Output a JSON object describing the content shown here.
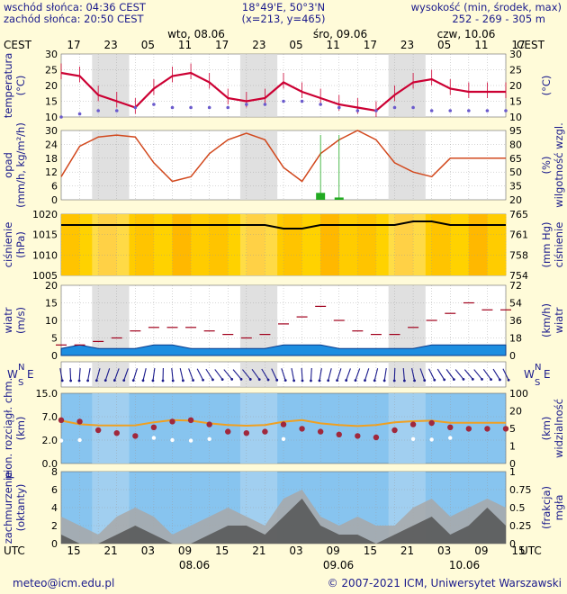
{
  "header": {
    "sunrise": "wschód słońca: 04:36 CEST",
    "sunset": "zachód słońca: 20:50 CEST",
    "coords": "18°49'E, 50°3'N",
    "grid": "(x=213, y=465)",
    "elev_label": "wysokość (min, środek, max)",
    "elev_values": "252 - 269 - 305 m"
  },
  "tz_top": "CEST",
  "tz_bottom": "UTC",
  "day_labels_top": [
    "wto, 08.06",
    "śro, 09.06",
    "czw, 10.06"
  ],
  "day_labels_bottom": [
    "08.06",
    "09.06",
    "10.06"
  ],
  "hours_top": [
    "17",
    "23",
    "05",
    "11",
    "17",
    "23",
    "05",
    "11",
    "17",
    "23",
    "05",
    "11",
    "17"
  ],
  "hours_bottom": [
    "15",
    "21",
    "03",
    "09",
    "15",
    "21",
    "03",
    "09",
    "15",
    "21",
    "03",
    "09",
    "15"
  ],
  "panels": {
    "temp": {
      "left_label": "temperatura",
      "left_unit": "(°C)",
      "right_label": "(°C)",
      "ticks": [
        "30",
        "25",
        "20",
        "15",
        "10"
      ]
    },
    "precip": {
      "left_label": "opad",
      "left_unit": "(mm/h, kg/m²/h)",
      "right_label": "wilgotność wzgl.",
      "right_unit": "(%)",
      "ticks_left": [
        "30",
        "24",
        "18",
        "12",
        "6",
        "0"
      ],
      "ticks_right": [
        "95",
        "80",
        "65",
        "50",
        "35",
        "20"
      ]
    },
    "pressure": {
      "left_label": "ciśnienie",
      "left_unit": "(hPa)",
      "right_label": "ciśnienie",
      "right_unit": "(mm Hg)",
      "ticks_left": [
        "1020",
        "1015",
        "1010",
        "1005"
      ],
      "ticks_right": [
        "765",
        "761",
        "758",
        "754"
      ]
    },
    "wind": {
      "left_label": "wiatr",
      "left_unit": "(m/s)",
      "right_label": "wiatr",
      "right_unit": "(km/h)",
      "ticks_left": [
        "20",
        "15",
        "10",
        "5",
        "0"
      ],
      "ticks_right": [
        "72",
        "54",
        "36",
        "18",
        "0"
      ]
    },
    "winddir": {
      "compass": "WNSE"
    },
    "cloudbase": {
      "left_label": "pion. rozciągł. chm.",
      "left_unit": "(km)",
      "right_label": "widzialność",
      "right_unit": "(km)",
      "ticks_left": [
        "15.0",
        "7.0",
        "2.0",
        "0.0"
      ],
      "ticks_right": [
        "100",
        "20",
        "5",
        "1",
        "0"
      ]
    },
    "cloud": {
      "left_label": "zachmurzenie",
      "left_unit": "(oktanty)",
      "right_label": "mgła",
      "right_unit": "(frakcja)",
      "ticks_left": [
        "8",
        "6",
        "4",
        "2",
        "0"
      ],
      "ticks_right": [
        "1",
        "0.75",
        "0.5",
        "0.25",
        "0"
      ]
    }
  },
  "footer": {
    "email": "meteo@icm.edu.pl",
    "copyright": "© 2007-2021 ICM, Uniwersytet Warszawski"
  },
  "colors": {
    "background": "#fffbd9",
    "temp_line": "#cc0033",
    "dewpoint_line": "#1a1a8c",
    "humidity_line": "#d2491e",
    "pressure_fill": "#ffc800",
    "wind_fill": "#1d8ee0",
    "cloud_fill": "#87c4ef",
    "night_shade": "#d8d8d8",
    "label_blue": "#1a1a8c"
  },
  "chart_data": {
    "type": "line",
    "x": [
      0,
      3,
      6,
      9,
      12,
      15,
      18,
      21,
      24,
      27,
      30,
      33,
      36,
      39,
      42,
      45,
      48,
      51,
      54,
      57,
      60,
      63,
      66,
      69,
      72
    ],
    "temperature": {
      "values": [
        24,
        23,
        17,
        15,
        13,
        19,
        23,
        24,
        21,
        16,
        15,
        16,
        21,
        18,
        16,
        14,
        13,
        12,
        17,
        21,
        22,
        19,
        18,
        18,
        18
      ],
      "ylim": [
        10,
        30
      ]
    },
    "dewpoint": {
      "values": [
        10,
        11,
        12,
        12,
        13,
        14,
        13,
        13,
        13,
        13,
        14,
        14,
        15,
        15,
        14,
        13,
        12,
        12,
        13,
        13,
        12,
        12,
        12,
        12,
        12
      ],
      "ylim": [
        10,
        30
      ]
    },
    "humidity": {
      "values": [
        45,
        78,
        88,
        90,
        88,
        60,
        40,
        45,
        70,
        85,
        92,
        85,
        55,
        40,
        70,
        85,
        95,
        85,
        60,
        50,
        45,
        65,
        65,
        65,
        65
      ],
      "ylim": [
        20,
        95
      ]
    },
    "precip": {
      "values": [
        0,
        0,
        0,
        0,
        0,
        0,
        0,
        0,
        0,
        0,
        0,
        0,
        0,
        0,
        3,
        1,
        0,
        0,
        0,
        0,
        0,
        0,
        0,
        0,
        0
      ],
      "ylim": [
        0,
        30
      ]
    },
    "pressure": {
      "values": [
        1019,
        1019,
        1019,
        1019,
        1019,
        1019,
        1019,
        1019,
        1019,
        1019,
        1019,
        1019,
        1018,
        1018,
        1019,
        1019,
        1019,
        1019,
        1019,
        1020,
        1020,
        1019,
        1019,
        1019,
        1019
      ],
      "ylim": [
        1005,
        1022
      ]
    },
    "wind": {
      "values": [
        2,
        3,
        2,
        2,
        2,
        3,
        3,
        2,
        2,
        2,
        2,
        2,
        3,
        3,
        3,
        2,
        2,
        2,
        2,
        2,
        3,
        3,
        3,
        3,
        3
      ],
      "ylim": [
        0,
        20
      ]
    },
    "gust": {
      "values": [
        3,
        3,
        4,
        5,
        7,
        8,
        8,
        8,
        7,
        6,
        5,
        6,
        9,
        11,
        14,
        10,
        7,
        6,
        6,
        8,
        10,
        12,
        15,
        13,
        13
      ],
      "ylim": [
        0,
        20
      ]
    }
  }
}
